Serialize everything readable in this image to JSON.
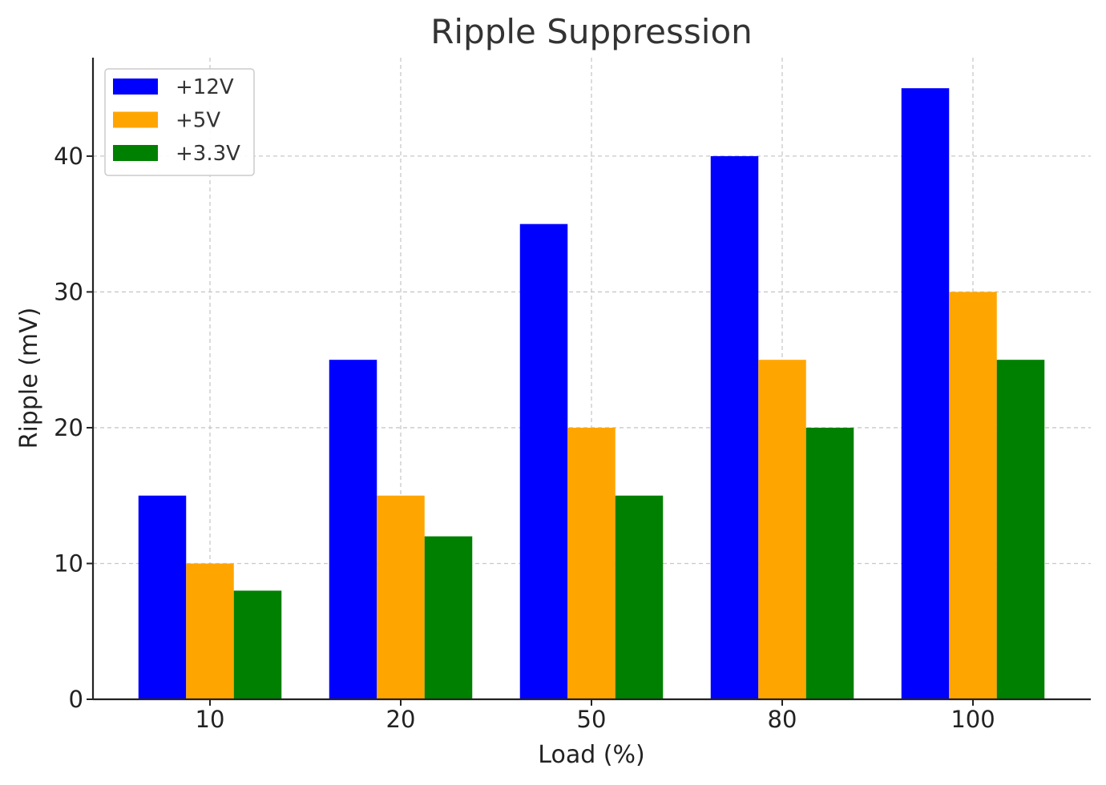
{
  "chart_data": {
    "type": "bar",
    "title": "Ripple Suppression",
    "xlabel": "Load (%)",
    "ylabel": "Ripple (mV)",
    "categories": [
      "10",
      "20",
      "50",
      "80",
      "100"
    ],
    "series": [
      {
        "name": "+12V",
        "color": "#0000ff",
        "values": [
          15,
          25,
          35,
          40,
          45
        ]
      },
      {
        "name": "+5V",
        "color": "#ffa500",
        "values": [
          10,
          15,
          20,
          25,
          30
        ]
      },
      {
        "name": "+3.3V",
        "color": "#008000",
        "values": [
          8,
          12,
          15,
          20,
          25
        ]
      }
    ],
    "ylim": [
      0,
      47.25
    ],
    "yticks": [
      0,
      10,
      20,
      30,
      40
    ],
    "grid": true,
    "legend_position": "top-left"
  }
}
